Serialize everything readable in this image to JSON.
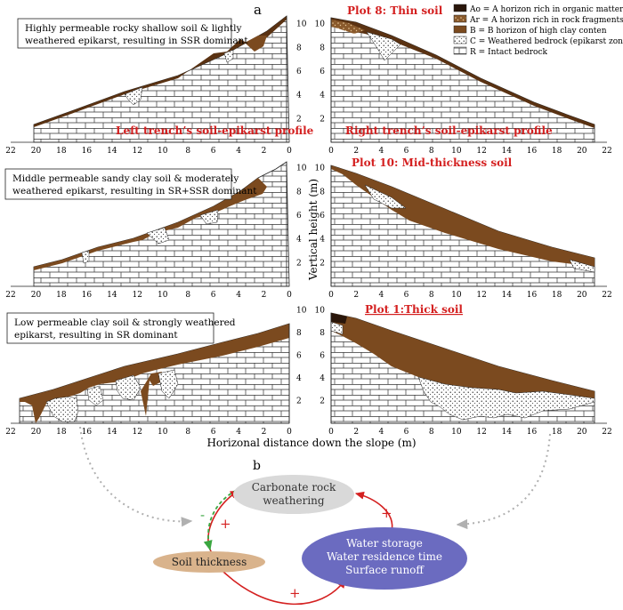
{
  "panel_a_label": "a",
  "panel_b_label": "b",
  "legend": [
    {
      "text": "Ao = A horizon rich in organic matter",
      "key": "ao"
    },
    {
      "text": "Ar = A horizon rich in rock fragments",
      "key": "ar"
    },
    {
      "text": "B = B horizon of high clay conten",
      "key": "b"
    },
    {
      "text": "C = Weathered bedrock (epikarst zone)",
      "key": "c"
    },
    {
      "text": "R = Intact bedrock",
      "key": "r"
    }
  ],
  "colors": {
    "ao": "#2a160a",
    "ar": "#8a5a2c",
    "b": "#7b4a1f",
    "c": "#ffffff",
    "r": "#ffffff",
    "red": "#d42020",
    "green": "#3aa640"
  },
  "left_row1": {
    "title_lines": [
      "Highly permeable rocky shallow soil & lightly",
      "weathered epikarst, resulting in SSR dominant"
    ],
    "caption": "Left trench’s soil-epikarst profile"
  },
  "left_row2": {
    "title_lines": [
      "Middle permeable sandy clay soil & moderately",
      "weathered epikarst, resulting in SR+SSR dominant"
    ]
  },
  "left_row3": {
    "title_lines": [
      "Low permeable clay soil & strongly weathered",
      "epikarst, resulting in SR dominant"
    ]
  },
  "right_row1": {
    "plot_label": "Plot 8: Thin soil",
    "caption": "Right trench’s soil-epikarst profile"
  },
  "right_row2": {
    "plot_label": "Plot 10: Mid-thickness soil"
  },
  "right_row3": {
    "plot_label": "Plot 1:Thick soil"
  },
  "left_xticks": [
    "22",
    "20",
    "18",
    "16",
    "14",
    "12",
    "10",
    "8",
    "6",
    "4",
    "2",
    "0"
  ],
  "right_xticks": [
    "0",
    "2",
    "4",
    "6",
    "8",
    "10",
    "12",
    "14",
    "16",
    "18",
    "20",
    "22"
  ],
  "yticks": [
    "2",
    "4",
    "6",
    "8",
    "10"
  ],
  "y_axis_label": "Vertical height (m)",
  "x_axis_label": "Horizonal distance down the slope (m)",
  "flow": {
    "node_top": [
      "Carbonate rock",
      "weathering"
    ],
    "node_left": "Soil thickness",
    "node_right": [
      "Water storage",
      "Water residence time",
      "Surface runoff"
    ],
    "sign_minus": "-",
    "sign_plus": "+"
  }
}
